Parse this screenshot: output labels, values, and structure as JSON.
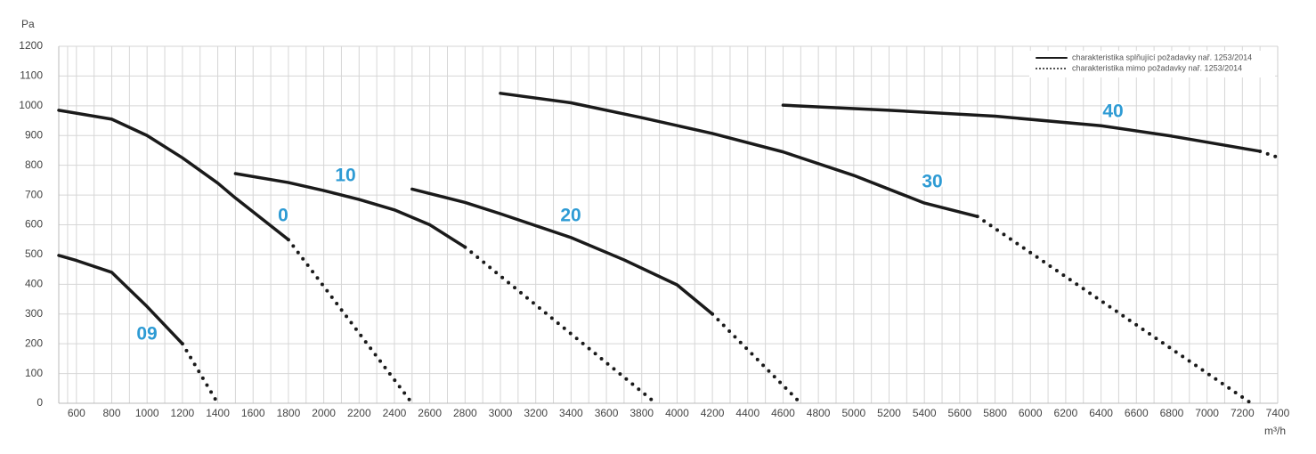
{
  "chart_data": {
    "type": "line",
    "y_label": "Pa",
    "x_label": "m³/h",
    "xlim": [
      500,
      7400
    ],
    "ylim": [
      0,
      1200
    ],
    "xticks": [
      600,
      800,
      1000,
      1200,
      1400,
      1600,
      1800,
      2000,
      2200,
      2400,
      2600,
      2800,
      3000,
      3200,
      3400,
      3600,
      3800,
      4000,
      4200,
      4400,
      4600,
      4800,
      5000,
      5200,
      5400,
      5600,
      5800,
      6000,
      6200,
      6400,
      6600,
      6800,
      7000,
      7200,
      7400
    ],
    "yticks": [
      0,
      100,
      200,
      300,
      400,
      500,
      600,
      700,
      800,
      900,
      1000,
      1100,
      1200
    ],
    "grid": true,
    "color": "#1a1a1a",
    "label_color": "#2e9bd4",
    "legend": {
      "position": "upper right",
      "entries": [
        {
          "label": "charakteristika splňující požadavky nař. 1253/2014",
          "style": "solid"
        },
        {
          "label": "charakteristika mimo požadavky nař. 1253/2014",
          "style": "dotted"
        }
      ]
    },
    "series": [
      {
        "name": "09",
        "x": [
          500,
          600,
          800,
          1000,
          1200
        ],
        "values": [
          497,
          480,
          440,
          325,
          200
        ],
        "dotted_x": [
          1200,
          1400
        ],
        "dotted_values": [
          200,
          0
        ]
      },
      {
        "name": "0",
        "x": [
          500,
          800,
          1000,
          1200,
          1400,
          1500,
          1800
        ],
        "values": [
          985,
          955,
          900,
          825,
          740,
          690,
          550
        ],
        "dotted_x": [
          1800,
          2500
        ],
        "dotted_values": [
          550,
          0
        ]
      },
      {
        "name": "10",
        "x": [
          1500,
          1800,
          2000,
          2200,
          2400,
          2600,
          2800
        ],
        "values": [
          772,
          742,
          715,
          685,
          650,
          600,
          525
        ],
        "dotted_x": [
          2800,
          3880
        ],
        "dotted_values": [
          525,
          0
        ]
      },
      {
        "name": "20",
        "x": [
          2500,
          2800,
          3000,
          3400,
          3700,
          4000,
          4200
        ],
        "values": [
          720,
          675,
          637,
          557,
          482,
          398,
          300
        ],
        "dotted_x": [
          4200,
          4700
        ],
        "dotted_values": [
          300,
          0
        ]
      },
      {
        "name": "30",
        "x": [
          3000,
          3400,
          3800,
          4200,
          4600,
          5000,
          5400,
          5700
        ],
        "values": [
          1042,
          1010,
          960,
          907,
          845,
          766,
          673,
          628
        ],
        "dotted_x": [
          5700,
          7250
        ],
        "dotted_values": [
          628,
          0
        ]
      },
      {
        "name": "40",
        "x": [
          4600,
          5200,
          5800,
          6400,
          6800,
          7300
        ],
        "values": [
          1002,
          985,
          965,
          933,
          898,
          847
        ],
        "dotted_x": [
          7300,
          7400
        ],
        "dotted_values": [
          847,
          827
        ]
      }
    ]
  }
}
